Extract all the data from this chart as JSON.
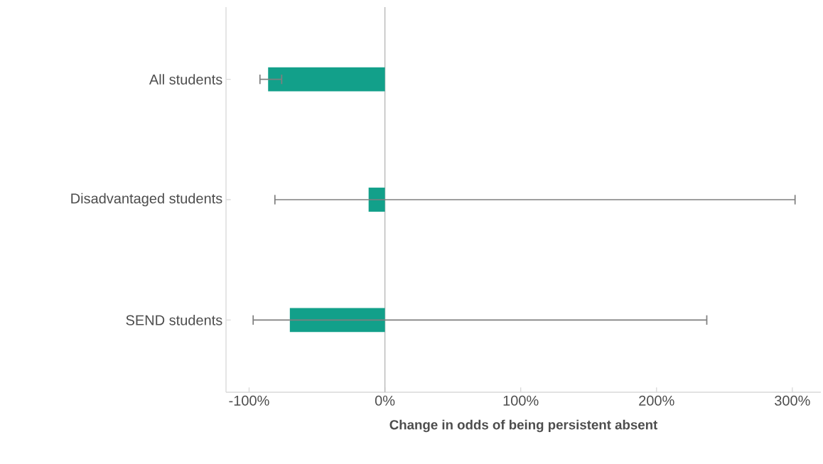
{
  "chart_data": {
    "type": "bar",
    "orientation": "horizontal",
    "categories": [
      "All students",
      "Disadvantaged students",
      "SEND students"
    ],
    "values": [
      -86,
      -12,
      -70
    ],
    "errors": [
      [
        -92,
        -76
      ],
      [
        -81,
        302
      ],
      [
        -97,
        237
      ]
    ],
    "color": "#12a08a",
    "xlabel": "Change in odds of being persistent absent",
    "xlim": [
      -117,
      321
    ],
    "xticks": [
      {
        "value": -100,
        "label": "-100%"
      },
      {
        "value": 0,
        "label": "0%"
      },
      {
        "value": 100,
        "label": "100%"
      },
      {
        "value": 200,
        "label": "200%"
      },
      {
        "value": 300,
        "label": "300%"
      }
    ],
    "ref_lines": [
      {
        "axis": "x",
        "value": 0,
        "color": "#b3b3b3"
      }
    ],
    "grid": false
  }
}
